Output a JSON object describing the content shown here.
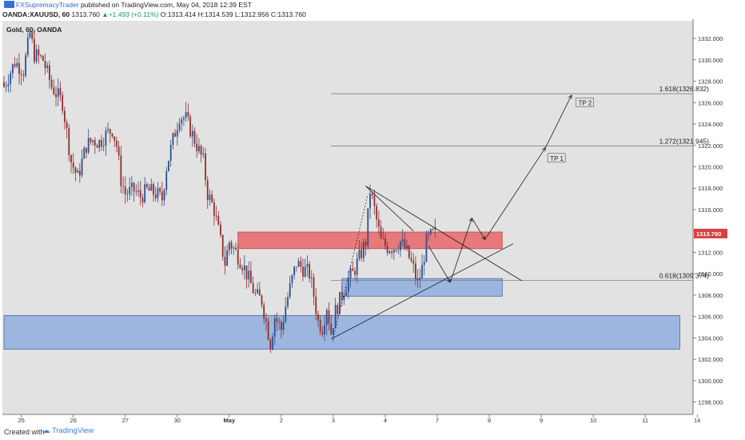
{
  "header": {
    "user": "FXSupremacyTrader",
    "published": "published on TradingView.com, May 04, 2018 12:39 EST",
    "symbol": "OANDA:XAUUSD, 60",
    "last": "1313.760",
    "change": "+1.493 (+0.11%)",
    "open": "O:1313.414",
    "high": "H:1314.539",
    "low": "L:1312.956",
    "close": "C:1313.760"
  },
  "footer": {
    "created_with": "Created with",
    "brand": "TradingView"
  },
  "colors": {
    "background": "#e2e2e2",
    "bull": "#2e4f8f",
    "bear": "#8e2f2f",
    "resistance_zone": "#e8797a",
    "support_zone": "#9db6e0",
    "price_tag": "#d94040"
  },
  "chart_data": {
    "type": "candlestick",
    "title": "Gold, 60, OANDA",
    "y_axis": {
      "position": "right",
      "range": [
        1297.0,
        1333.5
      ],
      "ticks": [
        "1298.000",
        "1300.000",
        "1302.000",
        "1304.000",
        "1306.000",
        "1308.000",
        "1310.000",
        "1312.000",
        "1314.000",
        "1316.000",
        "1318.000",
        "1320.000",
        "1322.000",
        "1324.000",
        "1326.000",
        "1328.000",
        "1330.000",
        "1332.000"
      ]
    },
    "x_axis": {
      "ticks": [
        {
          "label": "25",
          "bar": 8
        },
        {
          "label": "26",
          "bar": 32
        },
        {
          "label": "27",
          "bar": 56
        },
        {
          "label": "30",
          "bar": 80
        },
        {
          "label": "May",
          "bar": 104
        },
        {
          "label": "2",
          "bar": 128
        },
        {
          "label": "3",
          "bar": 152
        },
        {
          "label": "4",
          "bar": 176
        },
        {
          "label": "7",
          "bar": 200
        },
        {
          "label": "8",
          "bar": 224
        },
        {
          "label": "9",
          "bar": 248
        },
        {
          "label": "10",
          "bar": 272
        },
        {
          "label": "11",
          "bar": 296
        },
        {
          "label": "14",
          "bar": 320
        }
      ]
    },
    "close_path": [
      [
        0,
        1327.5
      ],
      [
        5,
        1329.8
      ],
      [
        9,
        1329.0
      ],
      [
        12,
        1332.5
      ],
      [
        14,
        1330.5
      ],
      [
        18,
        1330.0
      ],
      [
        22,
        1327.5
      ],
      [
        27,
        1326.0
      ],
      [
        31,
        1320.5
      ],
      [
        34,
        1319.0
      ],
      [
        38,
        1322.0
      ],
      [
        41,
        1322.5
      ],
      [
        44,
        1322.3
      ],
      [
        47,
        1323.0
      ],
      [
        50,
        1323.5
      ],
      [
        52,
        1322.0
      ],
      [
        54,
        1318.8
      ],
      [
        56,
        1317.5
      ],
      [
        60,
        1317.8
      ],
      [
        63,
        1317.2
      ],
      [
        66,
        1317.8
      ],
      [
        70,
        1317.5
      ],
      [
        73,
        1317.0
      ],
      [
        75,
        1320.0
      ],
      [
        78,
        1322.5
      ],
      [
        81,
        1324.8
      ],
      [
        84,
        1324.5
      ],
      [
        86,
        1323.5
      ],
      [
        89,
        1322.0
      ],
      [
        92,
        1320.5
      ],
      [
        94,
        1317.5
      ],
      [
        97,
        1316.0
      ],
      [
        100,
        1313.0
      ],
      [
        102,
        1311.0
      ],
      [
        104,
        1313.0
      ],
      [
        107,
        1312.0
      ],
      [
        110,
        1311.0
      ],
      [
        113,
        1309.5
      ],
      [
        116,
        1308.0
      ],
      [
        119,
        1307.5
      ],
      [
        121,
        1305.5
      ],
      [
        123,
        1303.5
      ],
      [
        125,
        1306.0
      ],
      [
        128,
        1304.8
      ],
      [
        130,
        1307.0
      ],
      [
        133,
        1309.5
      ],
      [
        135,
        1311.0
      ],
      [
        138,
        1310.5
      ],
      [
        141,
        1310.0
      ],
      [
        143,
        1308.0
      ],
      [
        145,
        1305.5
      ],
      [
        147,
        1305.0
      ],
      [
        149,
        1307.0
      ],
      [
        151,
        1304.5
      ],
      [
        153,
        1306.5
      ],
      [
        156,
        1308.0
      ],
      [
        159,
        1309.5
      ],
      [
        161,
        1310.0
      ],
      [
        164,
        1311.5
      ],
      [
        167,
        1313.0
      ],
      [
        169,
        1317.8
      ],
      [
        171,
        1316.0
      ],
      [
        174,
        1313.0
      ],
      [
        177,
        1312.5
      ],
      [
        180,
        1312.5
      ],
      [
        183,
        1313.0
      ],
      [
        186,
        1312.0
      ],
      [
        189,
        1310.5
      ],
      [
        191,
        1309.0
      ],
      [
        193,
        1310.5
      ],
      [
        195,
        1313.0
      ],
      [
        197,
        1313.5
      ],
      [
        199,
        1313.8
      ]
    ],
    "zones": [
      {
        "kind": "resistance",
        "from_bar": 108,
        "to_bar": 230,
        "y_low": 1312.35,
        "y_high": 1313.9
      },
      {
        "kind": "support-small",
        "from_bar": 156,
        "to_bar": 230,
        "y_low": 1307.9,
        "y_high": 1309.55
      },
      {
        "kind": "support-large",
        "from_bar": 0,
        "to_bar": 312,
        "y_low": 1302.95,
        "y_high": 1306.1
      }
    ],
    "trendlines": [
      {
        "name": "triangle-upper",
        "from": [
          167,
          1318.2
        ],
        "to": [
          239,
          1309.35
        ]
      },
      {
        "name": "triangle-lower",
        "from": [
          151,
          1303.9
        ],
        "to": [
          235,
          1312.8
        ]
      },
      {
        "name": "triangle-apex",
        "from": [
          167,
          1318.2
        ],
        "to": [
          189,
          1314.0
        ]
      }
    ],
    "projection_path": [
      [
        196,
        1312.6
      ],
      [
        206,
        1309.2
      ],
      [
        216,
        1315.2
      ],
      [
        222,
        1313.2
      ],
      [
        250,
        1321.8
      ],
      [
        262,
        1326.7
      ]
    ],
    "dashed_leg": {
      "from": [
        152,
        1304.0
      ],
      "to": [
        168,
        1317.4
      ]
    },
    "fib_levels": [
      {
        "label": "1.618(1326.832)",
        "value": 1326.832,
        "from_bar": 151
      },
      {
        "label": "1.272(1321.945)",
        "value": 1321.945,
        "from_bar": 151
      },
      {
        "label": "0.618(1309.374)",
        "value": 1309.374,
        "from_bar": 151
      }
    ],
    "annotations": [
      {
        "text": "TP 1",
        "bar": 251,
        "value": 1320.8
      },
      {
        "text": "TP 2",
        "bar": 264,
        "value": 1326.0
      }
    ],
    "last_price_label": "1313.760",
    "last_price_value": 1313.76
  }
}
